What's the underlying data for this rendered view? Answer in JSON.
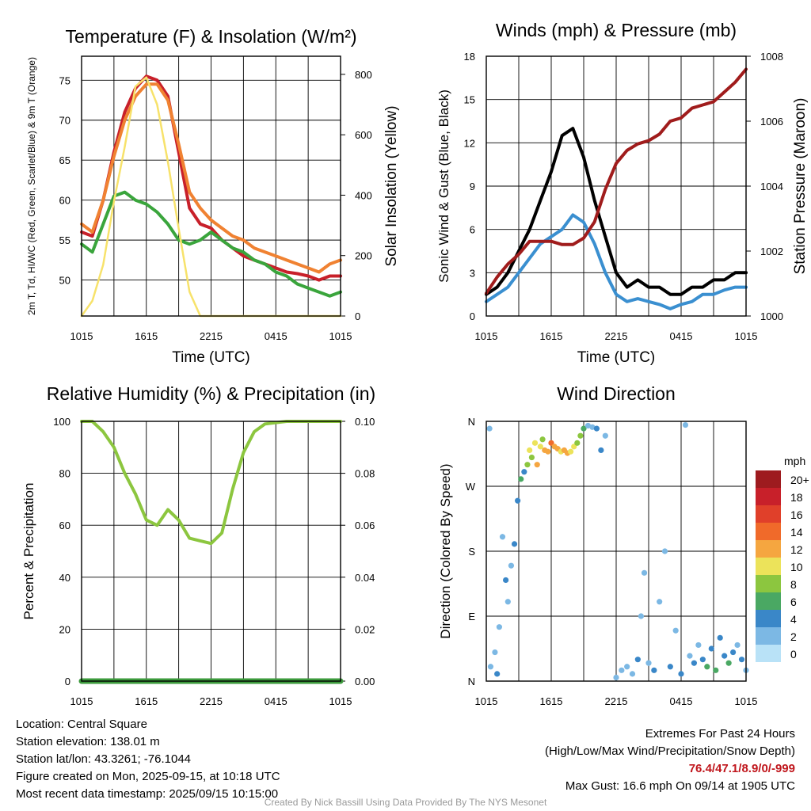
{
  "chart_data": [
    {
      "type": "line",
      "title": "Temperature (F) & Insolation (W/m²)",
      "xlabel": "Time (UTC)",
      "ylabel": "2m T, Td, HI/WC (Red, Green, Scarlet/Blue) & 9m T (Orange)",
      "y2label": "Solar Insolation (Yellow)",
      "x_ticks": [
        "1015",
        "1615",
        "2215",
        "0415",
        "1015"
      ],
      "ylim": [
        45.5,
        78
      ],
      "y_ticks": [
        50,
        55,
        60,
        65,
        70,
        75
      ],
      "y2lim": [
        0,
        860
      ],
      "y2_ticks": [
        0,
        200,
        400,
        600,
        800
      ],
      "x": [
        0,
        1,
        2,
        3,
        4,
        5,
        6,
        7,
        8,
        9,
        10,
        11,
        12,
        13,
        14,
        15,
        16,
        17,
        18,
        19,
        20,
        21,
        22,
        23,
        24
      ],
      "series": [
        {
          "name": "2m T",
          "color": "#c8202a",
          "axis": "y",
          "values": [
            56,
            55.5,
            60,
            66,
            71,
            74,
            75.5,
            75,
            73,
            66,
            59,
            57,
            56.5,
            55,
            54,
            53,
            52.5,
            52,
            51.5,
            51,
            50.8,
            50.5,
            50,
            50.5,
            50.5
          ]
        },
        {
          "name": "9m T",
          "color": "#f08232",
          "axis": "y",
          "values": [
            57,
            56,
            60,
            65.5,
            70,
            73,
            74.5,
            74.5,
            72.5,
            67,
            61,
            59,
            57.5,
            56.5,
            55.5,
            55,
            54,
            53.5,
            53,
            52.5,
            52,
            51.5,
            51,
            52,
            52.5
          ]
        },
        {
          "name": "Td",
          "color": "#3aa53c",
          "axis": "y",
          "values": [
            54.5,
            53.5,
            57,
            60.5,
            61,
            60,
            59.5,
            58.5,
            57,
            55,
            54.5,
            55,
            56,
            55,
            54,
            53.5,
            52.5,
            52,
            51,
            50.5,
            49.5,
            49,
            48.5,
            48,
            48.5
          ]
        },
        {
          "name": "Solar Insolation",
          "color": "#f7e26b",
          "axis": "y2",
          "values": [
            0,
            50,
            170,
            380,
            560,
            760,
            790,
            700,
            510,
            290,
            80,
            0,
            0,
            0,
            0,
            0,
            0,
            0,
            0,
            0,
            0,
            0,
            0,
            0,
            0
          ]
        }
      ]
    },
    {
      "type": "line",
      "title": "Winds (mph) & Pressure (mb)",
      "xlabel": "Time (UTC)",
      "ylabel": "Sonic Wind & Gust (Blue, Black)",
      "y2label": "Station Pressure (Maroon)",
      "x_ticks": [
        "1015",
        "1615",
        "2215",
        "0415",
        "1015"
      ],
      "ylim": [
        0,
        18
      ],
      "y_ticks": [
        0,
        3,
        6,
        9,
        12,
        15,
        18
      ],
      "y2lim": [
        1000,
        1008
      ],
      "y2_ticks": [
        1000,
        1002,
        1004,
        1006,
        1008
      ],
      "x": [
        0,
        1,
        2,
        3,
        4,
        5,
        6,
        7,
        8,
        9,
        10,
        11,
        12,
        13,
        14,
        15,
        16,
        17,
        18,
        19,
        20,
        21,
        22,
        23,
        24
      ],
      "series": [
        {
          "name": "Sonic Wind",
          "color": "#3a8fd0",
          "axis": "y",
          "values": [
            1,
            1.5,
            2,
            3,
            4,
            5,
            5.5,
            6,
            7,
            6.5,
            5,
            3,
            1.5,
            1,
            1.2,
            1,
            0.8,
            0.5,
            0.8,
            1,
            1.5,
            1.5,
            1.8,
            2,
            2
          ]
        },
        {
          "name": "Gust",
          "color": "#000000",
          "axis": "y",
          "values": [
            1.5,
            2,
            3,
            4.5,
            6,
            8,
            10,
            12.5,
            13,
            11,
            8,
            5.5,
            3,
            2,
            2.5,
            2,
            2,
            1.5,
            1.5,
            2,
            2,
            2.5,
            2.5,
            3,
            3
          ]
        },
        {
          "name": "Station Pressure",
          "color": "#a01c1c",
          "axis": "y2",
          "values": [
            1000.7,
            1001.2,
            1001.6,
            1001.9,
            1002.3,
            1002.3,
            1002.3,
            1002.2,
            1002.2,
            1002.4,
            1002.9,
            1003.9,
            1004.7,
            1005.1,
            1005.3,
            1005.4,
            1005.6,
            1006,
            1006.1,
            1006.4,
            1006.5,
            1006.6,
            1006.9,
            1007.2,
            1007.6
          ]
        }
      ]
    },
    {
      "type": "line",
      "title": "Relative Humidity (%) & Precipitation (in)",
      "xlabel": "",
      "ylabel": "Percent & Precipitation",
      "x_ticks": [
        "1015",
        "1615",
        "2215",
        "0415",
        "1015"
      ],
      "ylim": [
        0,
        100
      ],
      "y_ticks": [
        0,
        20,
        40,
        60,
        80,
        100
      ],
      "y2lim": [
        0,
        0.1
      ],
      "y2_ticks": [
        "0.00",
        "0.02",
        "0.04",
        "0.06",
        "0.08",
        "0.10"
      ],
      "x": [
        0,
        1,
        2,
        3,
        4,
        5,
        6,
        7,
        8,
        9,
        10,
        11,
        12,
        13,
        14,
        15,
        16,
        17,
        18,
        19,
        20,
        21,
        22,
        23,
        24
      ],
      "series": [
        {
          "name": "Relative Humidity",
          "color": "#8cc63f",
          "axis": "y",
          "values": [
            100,
            100,
            96,
            90,
            80,
            72,
            62,
            60,
            66,
            62,
            55,
            54,
            53,
            57,
            74,
            88,
            96,
            99,
            99.5,
            100,
            100,
            100,
            100,
            100,
            100
          ]
        },
        {
          "name": "Precipitation",
          "color": "#3c9a3c",
          "axis": "y2",
          "values": [
            0,
            0,
            0,
            0,
            0,
            0,
            0,
            0,
            0,
            0,
            0,
            0,
            0,
            0,
            0,
            0,
            0,
            0,
            0,
            0,
            0,
            0,
            0,
            0,
            0
          ]
        }
      ]
    },
    {
      "type": "scatter",
      "title": "Wind Direction",
      "xlabel": "",
      "ylabel": "Direction (Colored By Speed)",
      "x_ticks": [
        "1015",
        "1615",
        "2215",
        "0415",
        "1015"
      ],
      "y_tick_labels": [
        "N",
        "E",
        "S",
        "W",
        "N"
      ],
      "ylim": [
        0,
        360
      ],
      "legend_title": "mph",
      "legend_labels": [
        "20+",
        "18",
        "16",
        "14",
        "12",
        "10",
        "8",
        "6",
        "4",
        "2",
        "0"
      ],
      "legend_colors": [
        "#9e1b1f",
        "#c8202a",
        "#e0402a",
        "#f06a2a",
        "#f5a640",
        "#ece35a",
        "#8cc63f",
        "#4aa863",
        "#3a87c8",
        "#7cb8e4",
        "#b9e2f7"
      ],
      "points": [
        {
          "x": 0.3,
          "y": 350,
          "s": 1
        },
        {
          "x": 0.4,
          "y": 20,
          "s": 1
        },
        {
          "x": 0.8,
          "y": 40,
          "s": 1
        },
        {
          "x": 1.0,
          "y": 10,
          "s": 2
        },
        {
          "x": 1.2,
          "y": 75,
          "s": 1
        },
        {
          "x": 1.5,
          "y": 200,
          "s": 1
        },
        {
          "x": 1.8,
          "y": 140,
          "s": 2
        },
        {
          "x": 2.0,
          "y": 110,
          "s": 1
        },
        {
          "x": 2.3,
          "y": 160,
          "s": 1
        },
        {
          "x": 2.6,
          "y": 190,
          "s": 2
        },
        {
          "x": 2.9,
          "y": 250,
          "s": 2
        },
        {
          "x": 3.2,
          "y": 280,
          "s": 3
        },
        {
          "x": 3.5,
          "y": 290,
          "s": 2
        },
        {
          "x": 3.8,
          "y": 300,
          "s": 4
        },
        {
          "x": 4.0,
          "y": 320,
          "s": 5
        },
        {
          "x": 4.2,
          "y": 310,
          "s": 4
        },
        {
          "x": 4.5,
          "y": 330,
          "s": 5
        },
        {
          "x": 4.7,
          "y": 300,
          "s": 6
        },
        {
          "x": 5.0,
          "y": 325,
          "s": 5
        },
        {
          "x": 5.2,
          "y": 335,
          "s": 4
        },
        {
          "x": 5.4,
          "y": 320,
          "s": 6
        },
        {
          "x": 5.7,
          "y": 318,
          "s": 6
        },
        {
          "x": 6.0,
          "y": 330,
          "s": 7
        },
        {
          "x": 6.3,
          "y": 325,
          "s": 6
        },
        {
          "x": 6.6,
          "y": 322,
          "s": 6
        },
        {
          "x": 6.9,
          "y": 318,
          "s": 5
        },
        {
          "x": 7.2,
          "y": 320,
          "s": 6
        },
        {
          "x": 7.5,
          "y": 316,
          "s": 6
        },
        {
          "x": 7.8,
          "y": 318,
          "s": 5
        },
        {
          "x": 8.1,
          "y": 325,
          "s": 5
        },
        {
          "x": 8.4,
          "y": 330,
          "s": 4
        },
        {
          "x": 8.7,
          "y": 340,
          "s": 4
        },
        {
          "x": 9.0,
          "y": 350,
          "s": 3
        },
        {
          "x": 9.4,
          "y": 354,
          "s": 1
        },
        {
          "x": 9.8,
          "y": 352,
          "s": 1
        },
        {
          "x": 10.2,
          "y": 350,
          "s": 2
        },
        {
          "x": 10.6,
          "y": 320,
          "s": 2
        },
        {
          "x": 11.0,
          "y": 340,
          "s": 1
        },
        {
          "x": 12.0,
          "y": 5,
          "s": 1
        },
        {
          "x": 12.5,
          "y": 15,
          "s": 1
        },
        {
          "x": 13.0,
          "y": 20,
          "s": 1
        },
        {
          "x": 13.5,
          "y": 10,
          "s": 1
        },
        {
          "x": 14.0,
          "y": 30,
          "s": 2
        },
        {
          "x": 14.3,
          "y": 90,
          "s": 1
        },
        {
          "x": 14.6,
          "y": 150,
          "s": 1
        },
        {
          "x": 15.0,
          "y": 25,
          "s": 1
        },
        {
          "x": 15.5,
          "y": 15,
          "s": 2
        },
        {
          "x": 16.0,
          "y": 110,
          "s": 1
        },
        {
          "x": 16.5,
          "y": 180,
          "s": 1
        },
        {
          "x": 17.0,
          "y": 20,
          "s": 2
        },
        {
          "x": 17.5,
          "y": 70,
          "s": 1
        },
        {
          "x": 18.0,
          "y": 10,
          "s": 2
        },
        {
          "x": 18.4,
          "y": 355,
          "s": 1
        },
        {
          "x": 18.8,
          "y": 35,
          "s": 1
        },
        {
          "x": 19.2,
          "y": 25,
          "s": 2
        },
        {
          "x": 19.6,
          "y": 50,
          "s": 1
        },
        {
          "x": 20.0,
          "y": 30,
          "s": 2
        },
        {
          "x": 20.4,
          "y": 20,
          "s": 3
        },
        {
          "x": 20.8,
          "y": 45,
          "s": 2
        },
        {
          "x": 21.2,
          "y": 15,
          "s": 3
        },
        {
          "x": 21.6,
          "y": 60,
          "s": 2
        },
        {
          "x": 22.0,
          "y": 35,
          "s": 2
        },
        {
          "x": 22.4,
          "y": 25,
          "s": 3
        },
        {
          "x": 22.8,
          "y": 40,
          "s": 2
        },
        {
          "x": 23.2,
          "y": 50,
          "s": 1
        },
        {
          "x": 23.6,
          "y": 30,
          "s": 2
        },
        {
          "x": 24.0,
          "y": 15,
          "s": 1
        }
      ]
    }
  ],
  "info": {
    "location": "Location: Central Square",
    "elevation": "Station elevation: 138.01 m",
    "latlon": "Station lat/lon: 43.3261; -76.1044",
    "created": "Figure created on Mon, 2025-09-15, at 10:18 UTC",
    "recent": "Most recent data timestamp: 2025/09/15 10:15:00"
  },
  "extremes": {
    "heading": "Extremes For Past 24 Hours",
    "fields": "(High/Low/Max Wind/Precipitation/Snow Depth)",
    "values": "76.4/47.1/8.9/0/-999",
    "gust": "Max Gust: 16.6 mph On 09/14 at 1905 UTC"
  },
  "credit": "Created By Nick Bassill Using Data Provided By The NYS Mesonet"
}
